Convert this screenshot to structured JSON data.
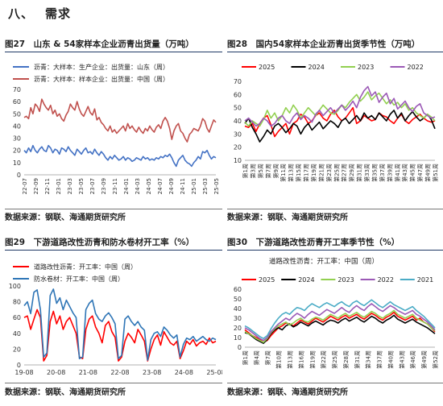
{
  "section": {
    "number": "八、",
    "title": "需求"
  },
  "charts": [
    {
      "title": "图27　山东 & 54家样本企业沥青出货量（万吨）",
      "source": "数据来源：钢联、海通期货研究所",
      "chart_data": {
        "type": "line",
        "ylim": [
          0,
          70
        ],
        "yticks": [
          "0",
          "10",
          "20",
          "30",
          "40",
          "50",
          "60",
          "70"
        ],
        "xticks": [
          "22-07",
          "22-09",
          "22-11",
          "23-01",
          "23-03",
          "23-05",
          "23-07",
          "23-09",
          "23-11",
          "24-01",
          "24-03",
          "24-05",
          "24-07",
          "24-09",
          "24-11",
          "25-01",
          "25-03",
          "25-05"
        ],
        "legend": "top-left",
        "series": [
          {
            "name": "沥青：大样本：生产企业：出货量：山东（周）",
            "color": "#4472c4",
            "values": [
              20,
              18,
              22,
              19,
              24,
              20,
              18,
              21,
              23,
              20,
              19,
              24,
              22,
              18,
              21,
              20,
              17,
              22,
              21,
              19,
              23,
              20,
              18,
              16,
              21,
              19,
              17,
              20,
              22,
              18,
              19,
              17,
              21,
              18,
              16,
              19,
              17,
              14,
              12,
              15,
              13,
              16,
              14,
              12,
              13,
              15,
              12,
              14,
              13,
              11,
              12,
              14,
              13,
              12,
              15,
              13,
              14,
              12,
              13,
              12,
              14,
              13,
              15,
              14,
              16,
              15,
              17,
              14,
              10,
              7,
              12,
              14,
              16,
              12,
              10,
              9,
              7,
              10,
              12,
              15,
              13,
              19,
              18,
              20,
              16,
              13,
              15,
              14
            ]
          },
          {
            "name": "沥青：大样本：样本企业：出货量：中国（周）",
            "color": "#c0504d",
            "values": [
              47,
              48,
              46,
              55,
              50,
              58,
              56,
              52,
              62,
              58,
              55,
              53,
              57,
              50,
              53,
              48,
              50,
              46,
              44,
              49,
              52,
              58,
              55,
              53,
              60,
              54,
              50,
              48,
              52,
              56,
              51,
              49,
              54,
              45,
              47,
              43,
              41,
              38,
              36,
              40,
              35,
              37,
              34,
              36,
              38,
              40,
              36,
              42,
              38,
              40,
              37,
              35,
              39,
              36,
              34,
              38,
              36,
              40,
              37,
              35,
              39,
              41,
              38,
              44,
              47,
              44,
              38,
              29,
              36,
              40,
              42,
              36,
              34,
              30,
              27,
              33,
              35,
              38,
              37,
              36,
              40,
              46,
              44,
              38,
              35,
              40,
              45,
              43
            ]
          }
        ]
      }
    },
    {
      "title": "图28　国内54家样本企业沥青出货季节性（万吨）",
      "source": "数据来源：钢联、海通期货研究所",
      "chart_data": {
        "type": "line",
        "ylim": [
          10,
          70
        ],
        "yticks": [
          "10",
          "20",
          "30",
          "40",
          "50",
          "60",
          "70"
        ],
        "xticks": [
          "第1周",
          "第3周",
          "第5周",
          "第7周",
          "第9周",
          "第11周",
          "第13周",
          "第15周",
          "第17周",
          "第19周",
          "第21周",
          "第23周",
          "第25周",
          "第27周",
          "第29周",
          "第31周",
          "第33周",
          "第35周",
          "第37周",
          "第39周",
          "第41周",
          "第43周",
          "第45周",
          "第47周",
          "第49周",
          "第51周"
        ],
        "legend": "top",
        "series": [
          {
            "name": "2025",
            "color": "#ff0000",
            "values": [
              36,
              35,
              38,
              32,
              38,
              42,
              44,
              37,
              28,
              32,
              35,
              38,
              30,
              38,
              40,
              45,
              43,
              38,
              40,
              44,
              46,
              42,
              40,
              45,
              48,
              43,
              40,
              42,
              46,
              50,
              38,
              40,
              44,
              42,
              40,
              41,
              46,
              44,
              43,
              40,
              38,
              42,
              45,
              40,
              38,
              41,
              43,
              45,
              42,
              40,
              39,
              40
            ]
          },
          {
            "name": "2024",
            "color": "#000000",
            "values": [
              38,
              42,
              35,
              30,
              24,
              28,
              33,
              30,
              36,
              38,
              35,
              31,
              34,
              38,
              36,
              30,
              35,
              38,
              33,
              36,
              39,
              34,
              37,
              40,
              38,
              35,
              40,
              42,
              38,
              41,
              44,
              40,
              46,
              42,
              44,
              41,
              46,
              43,
              40,
              45,
              48,
              42,
              46,
              40,
              44,
              47,
              43,
              40,
              42,
              45,
              41,
              34
            ]
          },
          {
            "name": "2023",
            "color": "#92d050",
            "values": [
              39,
              36,
              40,
              38,
              36,
              41,
              48,
              42,
              46,
              40,
              44,
              50,
              46,
              52,
              48,
              42,
              46,
              50,
              47,
              44,
              48,
              52,
              49,
              46,
              45,
              48,
              52,
              50,
              54,
              57,
              60,
              55,
              58,
              62,
              56,
              59,
              61,
              57,
              53,
              56,
              52,
              54,
              50,
              53,
              48,
              50,
              46,
              44,
              42,
              45,
              43,
              40
            ]
          },
          {
            "name": "2022",
            "color": "#9b59b6",
            "values": [
              40,
              42,
              39,
              36,
              38,
              42,
              40,
              36,
              38,
              42,
              44,
              40,
              38,
              43,
              46,
              41,
              44,
              42,
              39,
              45,
              48,
              44,
              47,
              50,
              46,
              49,
              52,
              48,
              51,
              55,
              50,
              58,
              63,
              66,
              59,
              62,
              54,
              58,
              61,
              53,
              57,
              49,
              52,
              55,
              50,
              47,
              51,
              53,
              46,
              44,
              42,
              43
            ]
          }
        ]
      }
    },
    {
      "title": "图29　下游道路改性沥青和防水卷材开工率（%）",
      "source": "数据来源：钢联、海通期货研究所",
      "chart_data": {
        "type": "line",
        "ylim": [
          0,
          100
        ],
        "yticks": [
          "0",
          "20",
          "40",
          "60",
          "80",
          "100"
        ],
        "xticks": [
          "19-08",
          "20-08",
          "21-08",
          "22-08",
          "23-08",
          "24-08",
          "25-08"
        ],
        "legend": "top-left",
        "series": [
          {
            "name": "道路改性沥青：开工率：中国（周）",
            "color": "#ff0000",
            "values": [
              60,
              62,
              45,
              58,
              70,
              60,
              5,
              12,
              55,
              68,
              52,
              62,
              45,
              55,
              60,
              50,
              40,
              10,
              8,
              45,
              58,
              62,
              48,
              40,
              28,
              50,
              55,
              42,
              35,
              5,
              10,
              30,
              40,
              35,
              28,
              45,
              38,
              30,
              5,
              20,
              32,
              38,
              25,
              42,
              35,
              28,
              25,
              30,
              8,
              18,
              30,
              26,
              32,
              24,
              28,
              30,
              26,
              34,
              28,
              30
            ]
          },
          {
            "name": "防水卷材：开工率：中国（周）",
            "color": "#2e75b6",
            "values": [
              75,
              80,
              65,
              92,
              95,
              70,
              10,
              15,
              88,
              96,
              78,
              85,
              70,
              82,
              74,
              66,
              60,
              8,
              10,
              70,
              78,
              82,
              65,
              58,
              55,
              62,
              66,
              60,
              52,
              8,
              12,
              58,
              62,
              55,
              50,
              55,
              48,
              44,
              6,
              32,
              40,
              42,
              36,
              48,
              44,
              38,
              34,
              38,
              10,
              26,
              34,
              32,
              36,
              30,
              33,
              36,
              32,
              30,
              34,
              32
            ]
          }
        ]
      }
    },
    {
      "title": "图30　下游道路改性沥青开工率季节性（%）",
      "source": "数据来源：钢联、海通期货研究所",
      "chart_data": {
        "type": "line",
        "ylim": [
          0,
          60
        ],
        "yticks": [
          "0",
          "10",
          "20",
          "30",
          "40",
          "50",
          "60"
        ],
        "xticks": [
          "第1周",
          "第4周",
          "第7周",
          "第10周",
          "第13周",
          "第16周",
          "第19周",
          "第22周",
          "第25周",
          "第28周",
          "第31周",
          "第34周",
          "第37周",
          "第40周",
          "第43周",
          "第46周",
          "第49周",
          "第52周"
        ],
        "legend": "top",
        "subtitle": "道路改性沥青：开工率：中国（周）",
        "series": [
          {
            "name": "2025",
            "color": "#ff0000",
            "values": [
              18,
              15,
              12,
              10,
              8,
              5,
              7,
              12,
              16,
              20,
              22,
              25,
              24,
              22,
              25,
              28,
              26,
              24,
              27,
              30,
              28,
              26,
              29,
              32,
              30,
              28,
              31,
              33,
              30,
              32,
              34,
              31,
              29,
              32,
              35,
              33,
              30,
              28,
              31,
              33,
              36,
              32,
              30,
              28,
              30,
              32,
              28,
              30,
              26,
              24,
              20,
              16
            ]
          },
          {
            "name": "2024",
            "color": "#000000",
            "values": [
              15,
              14,
              11,
              8,
              6,
              4,
              8,
              14,
              18,
              20,
              18,
              22,
              24,
              21,
              23,
              26,
              24,
              22,
              25,
              27,
              25,
              23,
              26,
              28,
              27,
              25,
              28,
              30,
              27,
              29,
              31,
              28,
              26,
              29,
              32,
              30,
              27,
              25,
              28,
              30,
              33,
              29,
              27,
              25,
              27,
              29,
              26,
              24,
              22,
              20,
              17,
              14
            ]
          },
          {
            "name": "2023",
            "color": "#92d050",
            "values": [
              16,
              14,
              12,
              9,
              7,
              5,
              9,
              15,
              19,
              22,
              24,
              26,
              23,
              25,
              28,
              30,
              27,
              26,
              29,
              31,
              30,
              28,
              31,
              34,
              32,
              30,
              33,
              35,
              32,
              34,
              36,
              33,
              31,
              34,
              37,
              35,
              32,
              30,
              33,
              35,
              38,
              34,
              32,
              30,
              32,
              34,
              30,
              28,
              26,
              24,
              20,
              17
            ]
          },
          {
            "name": "2022",
            "color": "#9b59b6",
            "values": [
              20,
              18,
              15,
              12,
              9,
              7,
              10,
              16,
              20,
              24,
              27,
              30,
              28,
              32,
              35,
              33,
              30,
              34,
              37,
              35,
              33,
              36,
              39,
              37,
              35,
              38,
              41,
              38,
              36,
              40,
              43,
              40,
              38,
              42,
              45,
              42,
              39,
              37,
              40,
              43,
              41,
              38,
              36,
              34,
              36,
              38,
              34,
              32,
              29,
              26,
              22,
              18
            ]
          },
          {
            "name": "2021",
            "color": "#4bacc6",
            "values": [
              22,
              20,
              17,
              14,
              11,
              9,
              12,
              19,
              25,
              30,
              34,
              36,
              34,
              38,
              41,
              40,
              38,
              42,
              45,
              43,
              41,
              44,
              46,
              44,
              42,
              45,
              47,
              44,
              42,
              46,
              48,
              45,
              43,
              46,
              49,
              46,
              43,
              41,
              44,
              47,
              44,
              42,
              40,
              38,
              40,
              42,
              38,
              35,
              32,
              28,
              24,
              20
            ]
          }
        ]
      }
    }
  ]
}
